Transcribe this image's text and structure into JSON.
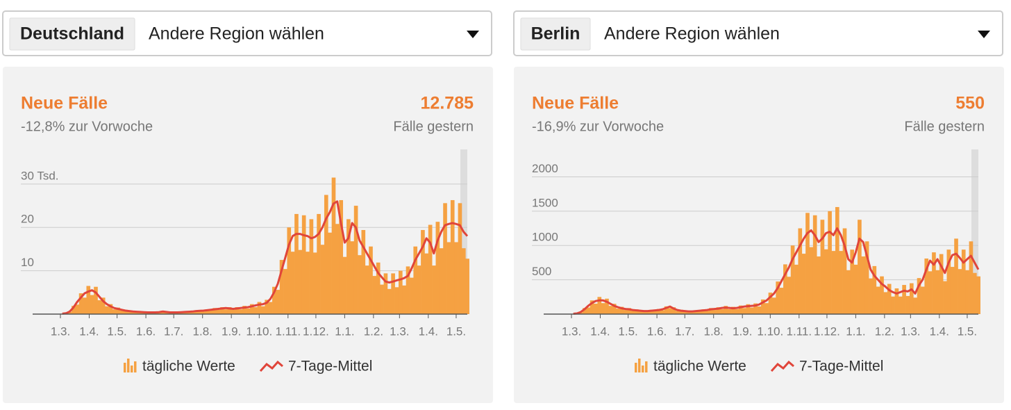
{
  "panels": [
    {
      "region": "Deutschland",
      "select": "Andere Region wählen"
    },
    {
      "region": "Berlin",
      "select": "Andere Region wählen"
    }
  ],
  "chart_data": [
    {
      "type": "bar",
      "title": "Neue Fälle",
      "subtitle": "-12,8% zur Vorwoche",
      "stat": "12.785",
      "stat_caption": "Fälle gestern",
      "x": [
        0,
        4,
        8,
        12,
        16,
        20,
        24,
        28,
        32,
        36,
        40,
        44,
        48,
        52,
        56,
        60,
        64,
        68,
        72,
        76,
        80,
        84,
        88,
        92,
        96,
        100,
        104,
        108,
        112,
        116,
        120,
        124,
        128,
        132,
        136,
        140,
        144,
        148,
        152,
        156,
        160,
        164,
        168,
        172,
        176,
        180,
        184,
        188,
        192,
        196,
        200,
        204,
        208,
        212,
        216,
        220,
        224,
        228,
        232,
        236,
        240,
        244,
        248,
        252,
        256,
        260,
        264,
        268,
        272,
        276,
        280,
        284,
        288,
        292,
        296,
        300,
        304,
        308,
        312,
        316,
        320,
        324,
        328,
        332,
        336,
        340,
        344,
        348,
        352,
        356,
        360,
        364,
        368,
        372,
        376,
        380,
        384,
        388,
        392,
        396,
        400,
        404,
        408,
        412,
        416,
        420,
        424,
        428,
        432,
        436
      ],
      "xlim": [
        0,
        438
      ],
      "xticks": [
        {
          "value": 0,
          "label": "1.3."
        },
        {
          "value": 31,
          "label": "1.4."
        },
        {
          "value": 61,
          "label": "1.5."
        },
        {
          "value": 92,
          "label": "1.6."
        },
        {
          "value": 122,
          "label": "1.7."
        },
        {
          "value": 153,
          "label": "1.8."
        },
        {
          "value": 184,
          "label": "1.9."
        },
        {
          "value": 214,
          "label": "1.10."
        },
        {
          "value": 245,
          "label": "1.11."
        },
        {
          "value": 275,
          "label": "1.12."
        },
        {
          "value": 306,
          "label": "1.1."
        },
        {
          "value": 337,
          "label": "1.2."
        },
        {
          "value": 365,
          "label": "1.3."
        },
        {
          "value": 396,
          "label": "1.4."
        },
        {
          "value": 426,
          "label": "1.5."
        }
      ],
      "ylim": [
        0,
        38
      ],
      "yticks": [
        {
          "value": 30,
          "label": "30 Tsd."
        },
        20,
        10
      ],
      "grid": true,
      "series": [
        {
          "name": "tägliche Werte",
          "type": "bar",
          "color": "#f5a142",
          "values": [
            0.1,
            0.3,
            0.5,
            1.9,
            2.2,
            4.8,
            3.8,
            6.5,
            4.4,
            6.3,
            3.2,
            3.8,
            1.8,
            2.3,
            1.1,
            1.5,
            0.8,
            1.0,
            0.6,
            0.8,
            0.4,
            0.6,
            0.4,
            0.5,
            0.3,
            0.5,
            0.4,
            0.8,
            0.4,
            0.5,
            0.3,
            0.5,
            0.4,
            0.6,
            0.4,
            0.8,
            0.6,
            0.9,
            0.6,
            1.1,
            0.8,
            1.4,
            1.0,
            1.6,
            1.1,
            1.6,
            1.0,
            1.6,
            1.1,
            1.9,
            1.3,
            2.3,
            1.6,
            2.8,
            1.8,
            3.3,
            2.8,
            6.3,
            5.6,
            12.5,
            10.4,
            20.0,
            14.4,
            23.1,
            14.8,
            22.8,
            14.4,
            21.9,
            14.2,
            23.1,
            16.0,
            27.5,
            18.8,
            31.5,
            20.8,
            26.3,
            13.2,
            21.9,
            16.8,
            25.0,
            13.6,
            19.4,
            11.2,
            15.6,
            8.8,
            11.9,
            6.8,
            9.4,
            5.8,
            9.4,
            6.2,
            10.0,
            6.6,
            11.0,
            8.4,
            15.6,
            11.2,
            19.4,
            14.0,
            20.6,
            11.2,
            21.3,
            15.2,
            25.6,
            16.6,
            26.3,
            16.6,
            25.6,
            15.2,
            12.785
          ]
        },
        {
          "name": "7-Tage-Mittel",
          "type": "line",
          "color": "#e0453a",
          "values": [
            0.1,
            0.2,
            0.6,
            1.5,
            2.8,
            3.8,
            4.8,
            5.2,
            5.5,
            5.0,
            4.0,
            3.0,
            2.3,
            1.8,
            1.4,
            1.2,
            1.0,
            0.8,
            0.7,
            0.6,
            0.55,
            0.5,
            0.45,
            0.4,
            0.4,
            0.4,
            0.45,
            0.6,
            0.5,
            0.4,
            0.4,
            0.4,
            0.45,
            0.5,
            0.55,
            0.6,
            0.7,
            0.75,
            0.8,
            0.9,
            1.0,
            1.1,
            1.2,
            1.3,
            1.4,
            1.3,
            1.2,
            1.3,
            1.4,
            1.5,
            1.6,
            1.8,
            2.0,
            2.2,
            2.3,
            2.6,
            3.5,
            5.0,
            7.0,
            10.0,
            13.0,
            16.0,
            18.0,
            18.5,
            18.5,
            18.2,
            18.0,
            17.5,
            17.8,
            18.5,
            20.0,
            22.0,
            23.5,
            25.5,
            26.0,
            21.0,
            16.5,
            17.5,
            21.0,
            20.0,
            17.0,
            15.5,
            14.0,
            12.5,
            11.0,
            9.5,
            8.5,
            7.5,
            7.3,
            7.5,
            7.8,
            8.0,
            8.3,
            8.8,
            10.5,
            12.5,
            14.0,
            15.5,
            17.5,
            16.5,
            14.0,
            17.0,
            19.0,
            20.5,
            20.8,
            21.0,
            20.8,
            20.5,
            19.0,
            18.0
          ]
        }
      ]
    },
    {
      "type": "bar",
      "title": "Neue Fälle",
      "subtitle": "-16,9% zur Vorwoche",
      "stat": "550",
      "stat_caption": "Fälle gestern",
      "x": [
        0,
        4,
        8,
        12,
        16,
        20,
        24,
        28,
        32,
        36,
        40,
        44,
        48,
        52,
        56,
        60,
        64,
        68,
        72,
        76,
        80,
        84,
        88,
        92,
        96,
        100,
        104,
        108,
        112,
        116,
        120,
        124,
        128,
        132,
        136,
        140,
        144,
        148,
        152,
        156,
        160,
        164,
        168,
        172,
        176,
        180,
        184,
        188,
        192,
        196,
        200,
        204,
        208,
        212,
        216,
        220,
        224,
        228,
        232,
        236,
        240,
        244,
        248,
        252,
        256,
        260,
        264,
        268,
        272,
        276,
        280,
        284,
        288,
        292,
        296,
        300,
        304,
        308,
        312,
        316,
        320,
        324,
        328,
        332,
        336,
        340,
        344,
        348,
        352,
        356,
        360,
        364,
        368,
        372,
        376,
        380,
        384,
        388,
        392,
        396,
        400,
        404,
        408,
        412,
        416,
        420,
        424,
        428,
        432,
        436
      ],
      "xlim": [
        0,
        438
      ],
      "xticks": [
        {
          "value": 0,
          "label": "1.3."
        },
        {
          "value": 31,
          "label": "1.4."
        },
        {
          "value": 61,
          "label": "1.5."
        },
        {
          "value": 92,
          "label": "1.6."
        },
        {
          "value": 122,
          "label": "1.7."
        },
        {
          "value": 153,
          "label": "1.8."
        },
        {
          "value": 184,
          "label": "1.9."
        },
        {
          "value": 214,
          "label": "1.10."
        },
        {
          "value": 245,
          "label": "1.11."
        },
        {
          "value": 275,
          "label": "1.12."
        },
        {
          "value": 306,
          "label": "1.1."
        },
        {
          "value": 337,
          "label": "1.2."
        },
        {
          "value": 365,
          "label": "1.3."
        },
        {
          "value": 396,
          "label": "1.4."
        },
        {
          "value": 426,
          "label": "1.5."
        }
      ],
      "ylim": [
        0,
        2400
      ],
      "yticks": [
        2000,
        1500,
        1000,
        500
      ],
      "grid": true,
      "series": [
        {
          "name": "tägliche Werte",
          "type": "bar",
          "color": "#f5a142",
          "values": [
            3,
            13,
            24,
            88,
            96,
            200,
            152,
            250,
            160,
            225,
            120,
            150,
            80,
            106,
            60,
            88,
            48,
            69,
            40,
            56,
            36,
            63,
            44,
            75,
            56,
            113,
            88,
            100,
            48,
            63,
            36,
            50,
            32,
            56,
            40,
            69,
            48,
            88,
            60,
            100,
            72,
            119,
            72,
            106,
            72,
            125,
            88,
            144,
            96,
            156,
            112,
            213,
            160,
            313,
            240,
            475,
            384,
            725,
            544,
            1000,
            720,
            1250,
            880,
            1475,
            976,
            1440,
            840,
            1375,
            944,
            1500,
            920,
            1560,
            920,
            1250,
            640,
            940,
            720,
            1375,
            840,
            1060,
            520,
            700,
            400,
            550,
            320,
            440,
            256,
            375,
            256,
            425,
            264,
            450,
            240,
            525,
            400,
            810,
            624,
            900,
            640,
            875,
            480,
            940,
            688,
            1100,
            656,
            940,
            640,
            1060,
            600,
            550
          ]
        },
        {
          "name": "7-Tage-Mittel",
          "type": "line",
          "color": "#e0453a",
          "values": [
            5,
            10,
            30,
            70,
            120,
            160,
            190,
            200,
            200,
            180,
            150,
            120,
            100,
            85,
            75,
            70,
            60,
            55,
            50,
            45,
            45,
            50,
            55,
            60,
            70,
            90,
            110,
            80,
            60,
            50,
            45,
            40,
            40,
            45,
            50,
            55,
            60,
            70,
            75,
            80,
            90,
            95,
            90,
            85,
            90,
            100,
            110,
            115,
            120,
            125,
            140,
            170,
            200,
            250,
            300,
            380,
            480,
            580,
            680,
            800,
            900,
            1000,
            1100,
            1180,
            1220,
            1150,
            1050,
            1100,
            1180,
            1200,
            1150,
            1250,
            1150,
            1000,
            800,
            750,
            900,
            1100,
            1050,
            850,
            650,
            560,
            500,
            440,
            400,
            350,
            320,
            300,
            320,
            340,
            330,
            360,
            300,
            420,
            500,
            650,
            780,
            720,
            800,
            700,
            600,
            750,
            860,
            880,
            820,
            750,
            800,
            850,
            750,
            650
          ]
        }
      ]
    }
  ]
}
